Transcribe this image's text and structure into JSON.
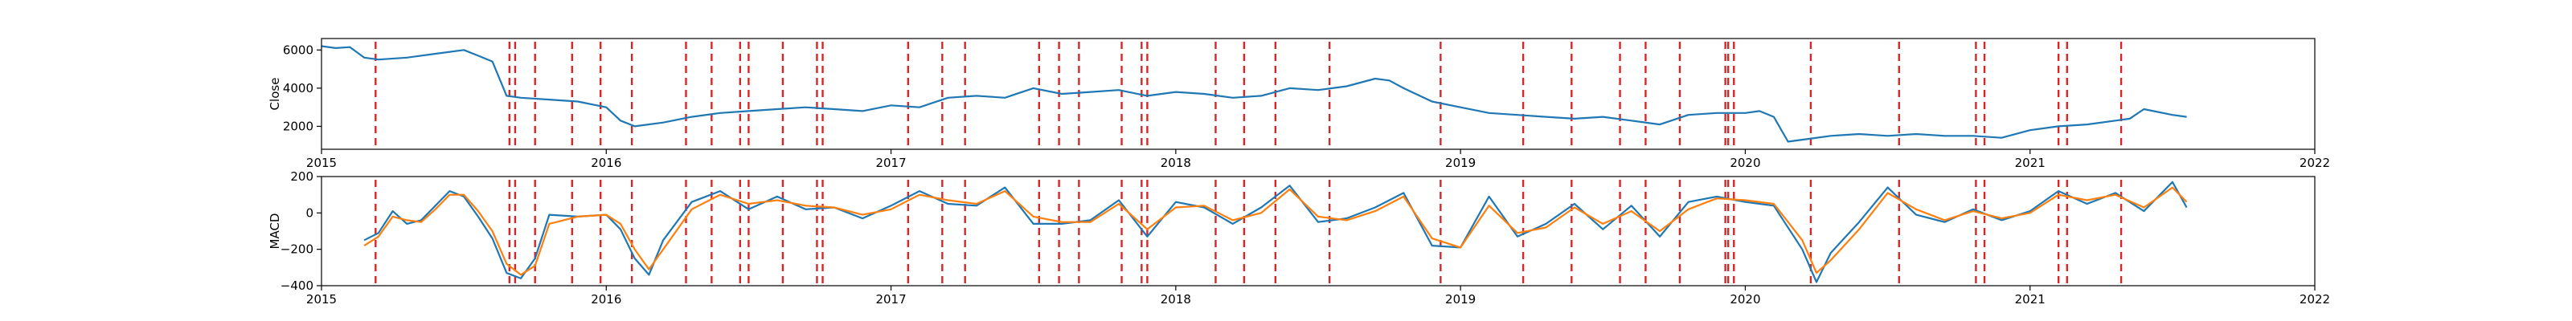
{
  "chart_data": [
    {
      "type": "line",
      "ylabel": "Close",
      "xlim": [
        2015.0,
        2022.0
      ],
      "ylim": [
        800,
        6600
      ],
      "xticks": [
        2015,
        2016,
        2017,
        2018,
        2019,
        2020,
        2021,
        2022
      ],
      "xtick_labels": [
        "2015",
        "2016",
        "2017",
        "2018",
        "2019",
        "2020",
        "2021",
        "2022"
      ],
      "yticks": [
        2000,
        4000,
        6000
      ],
      "ytick_labels": [
        "2000",
        "4000",
        "6000"
      ],
      "grid": false,
      "series": [
        {
          "color": "#1f77b4",
          "x": [
            2015.0,
            2015.05,
            2015.1,
            2015.15,
            2015.2,
            2015.3,
            2015.4,
            2015.5,
            2015.55,
            2015.6,
            2015.65,
            2015.7,
            2015.8,
            2015.9,
            2016.0,
            2016.05,
            2016.1,
            2016.2,
            2016.3,
            2016.4,
            2016.5,
            2016.6,
            2016.7,
            2016.8,
            2016.9,
            2017.0,
            2017.1,
            2017.2,
            2017.3,
            2017.4,
            2017.5,
            2017.6,
            2017.7,
            2017.8,
            2017.9,
            2018.0,
            2018.1,
            2018.2,
            2018.3,
            2018.4,
            2018.5,
            2018.6,
            2018.7,
            2018.75,
            2018.8,
            2018.9,
            2019.0,
            2019.1,
            2019.2,
            2019.3,
            2019.4,
            2019.5,
            2019.6,
            2019.7,
            2019.8,
            2019.9,
            2020.0,
            2020.05,
            2020.1,
            2020.15,
            2020.2,
            2020.3,
            2020.4,
            2020.5,
            2020.6,
            2020.7,
            2020.8,
            2020.9,
            2021.0,
            2021.1,
            2021.2,
            2021.3,
            2021.35,
            2021.4,
            2021.5,
            2021.55
          ],
          "y": [
            6200,
            6100,
            6150,
            5600,
            5500,
            5600,
            5800,
            6000,
            5700,
            5400,
            3600,
            3500,
            3400,
            3300,
            3000,
            2300,
            2000,
            2200,
            2500,
            2700,
            2800,
            2900,
            3000,
            2900,
            2800,
            3100,
            3000,
            3500,
            3600,
            3500,
            4000,
            3700,
            3800,
            3900,
            3600,
            3800,
            3700,
            3500,
            3600,
            4000,
            3900,
            4100,
            4500,
            4400,
            4000,
            3300,
            3000,
            2700,
            2600,
            2500,
            2400,
            2500,
            2300,
            2100,
            2600,
            2700,
            2700,
            2800,
            2500,
            1200,
            1300,
            1500,
            1600,
            1500,
            1600,
            1500,
            1500,
            1400,
            1800,
            2000,
            2100,
            2300,
            2400,
            2900,
            2600,
            2500
          ]
        }
      ]
    },
    {
      "type": "line",
      "ylabel": "MACD",
      "xlim": [
        2015.0,
        2022.0
      ],
      "ylim": [
        -400,
        200
      ],
      "xticks": [
        2015,
        2016,
        2017,
        2018,
        2019,
        2020,
        2021,
        2022
      ],
      "xtick_labels": [
        "2015",
        "2016",
        "2017",
        "2018",
        "2019",
        "2020",
        "2021",
        "2022"
      ],
      "yticks": [
        -400,
        -200,
        0,
        200
      ],
      "ytick_labels": [
        "−400",
        "−200",
        "0",
        "200"
      ],
      "grid": false,
      "series": [
        {
          "color": "#1f77b4",
          "x": [
            2015.15,
            2015.2,
            2015.25,
            2015.3,
            2015.35,
            2015.4,
            2015.45,
            2015.5,
            2015.55,
            2015.6,
            2015.65,
            2015.7,
            2015.75,
            2015.8,
            2015.9,
            2016.0,
            2016.05,
            2016.1,
            2016.15,
            2016.2,
            2016.3,
            2016.4,
            2016.5,
            2016.6,
            2016.7,
            2016.8,
            2016.9,
            2017.0,
            2017.1,
            2017.2,
            2017.3,
            2017.4,
            2017.5,
            2017.6,
            2017.7,
            2017.8,
            2017.9,
            2018.0,
            2018.1,
            2018.2,
            2018.3,
            2018.4,
            2018.5,
            2018.6,
            2018.7,
            2018.8,
            2018.9,
            2019.0,
            2019.1,
            2019.2,
            2019.3,
            2019.4,
            2019.5,
            2019.6,
            2019.7,
            2019.8,
            2019.9,
            2020.0,
            2020.1,
            2020.2,
            2020.25,
            2020.3,
            2020.4,
            2020.5,
            2020.6,
            2020.7,
            2020.8,
            2020.9,
            2021.0,
            2021.1,
            2021.2,
            2021.3,
            2021.4,
            2021.5,
            2021.55
          ],
          "y": [
            -150,
            -110,
            10,
            -60,
            -40,
            40,
            120,
            90,
            -20,
            -140,
            -330,
            -360,
            -250,
            -10,
            -20,
            -10,
            -90,
            -250,
            -340,
            -150,
            60,
            120,
            20,
            90,
            20,
            30,
            -30,
            40,
            120,
            50,
            40,
            140,
            -60,
            -60,
            -40,
            70,
            -130,
            60,
            30,
            -60,
            30,
            150,
            -50,
            -30,
            30,
            110,
            -180,
            -190,
            90,
            -130,
            -60,
            50,
            -90,
            40,
            -130,
            60,
            90,
            60,
            40,
            -200,
            -380,
            -220,
            -50,
            140,
            -10,
            -50,
            20,
            -40,
            10,
            120,
            50,
            110,
            10,
            170,
            30
          ],
          "name_hidden": true
        },
        {
          "color": "#ff7f0e",
          "x": [
            2015.15,
            2015.2,
            2015.25,
            2015.3,
            2015.35,
            2015.4,
            2015.45,
            2015.5,
            2015.55,
            2015.6,
            2015.65,
            2015.7,
            2015.75,
            2015.8,
            2015.9,
            2016.0,
            2016.05,
            2016.1,
            2016.15,
            2016.2,
            2016.3,
            2016.4,
            2016.5,
            2016.6,
            2016.7,
            2016.8,
            2016.9,
            2017.0,
            2017.1,
            2017.2,
            2017.3,
            2017.4,
            2017.5,
            2017.6,
            2017.7,
            2017.8,
            2017.9,
            2018.0,
            2018.1,
            2018.2,
            2018.3,
            2018.4,
            2018.5,
            2018.6,
            2018.7,
            2018.8,
            2018.9,
            2019.0,
            2019.1,
            2019.2,
            2019.3,
            2019.4,
            2019.5,
            2019.6,
            2019.7,
            2019.8,
            2019.9,
            2020.0,
            2020.1,
            2020.2,
            2020.25,
            2020.3,
            2020.4,
            2020.5,
            2020.6,
            2020.7,
            2020.8,
            2020.9,
            2021.0,
            2021.1,
            2021.2,
            2021.3,
            2021.4,
            2021.5,
            2021.55
          ],
          "y": [
            -180,
            -130,
            -20,
            -40,
            -50,
            20,
            100,
            100,
            10,
            -100,
            -280,
            -340,
            -290,
            -60,
            -20,
            -10,
            -60,
            -200,
            -310,
            -200,
            20,
            100,
            50,
            70,
            40,
            30,
            -10,
            20,
            100,
            70,
            50,
            120,
            -20,
            -50,
            -50,
            50,
            -90,
            30,
            40,
            -40,
            0,
            130,
            -20,
            -40,
            10,
            90,
            -140,
            -190,
            40,
            -110,
            -80,
            30,
            -60,
            10,
            -100,
            20,
            80,
            70,
            50,
            -150,
            -330,
            -260,
            -90,
            110,
            20,
            -40,
            10,
            -30,
            0,
            100,
            70,
            100,
            30,
            140,
            60
          ],
          "name_hidden": true
        }
      ]
    }
  ],
  "events_x": [
    2015.19,
    2015.66,
    2015.68,
    2015.75,
    2015.88,
    2015.98,
    2016.09,
    2016.28,
    2016.37,
    2016.47,
    2016.5,
    2016.62,
    2016.74,
    2016.76,
    2017.06,
    2017.18,
    2017.26,
    2017.52,
    2017.59,
    2017.66,
    2017.81,
    2017.88,
    2017.9,
    2018.14,
    2018.24,
    2018.35,
    2018.54,
    2018.93,
    2019.22,
    2019.39,
    2019.56,
    2019.65,
    2019.77,
    2019.93,
    2019.94,
    2019.96,
    2020.23,
    2020.54,
    2020.81,
    2020.84,
    2021.1,
    2021.13,
    2021.32
  ],
  "event_color": "#ff0000"
}
